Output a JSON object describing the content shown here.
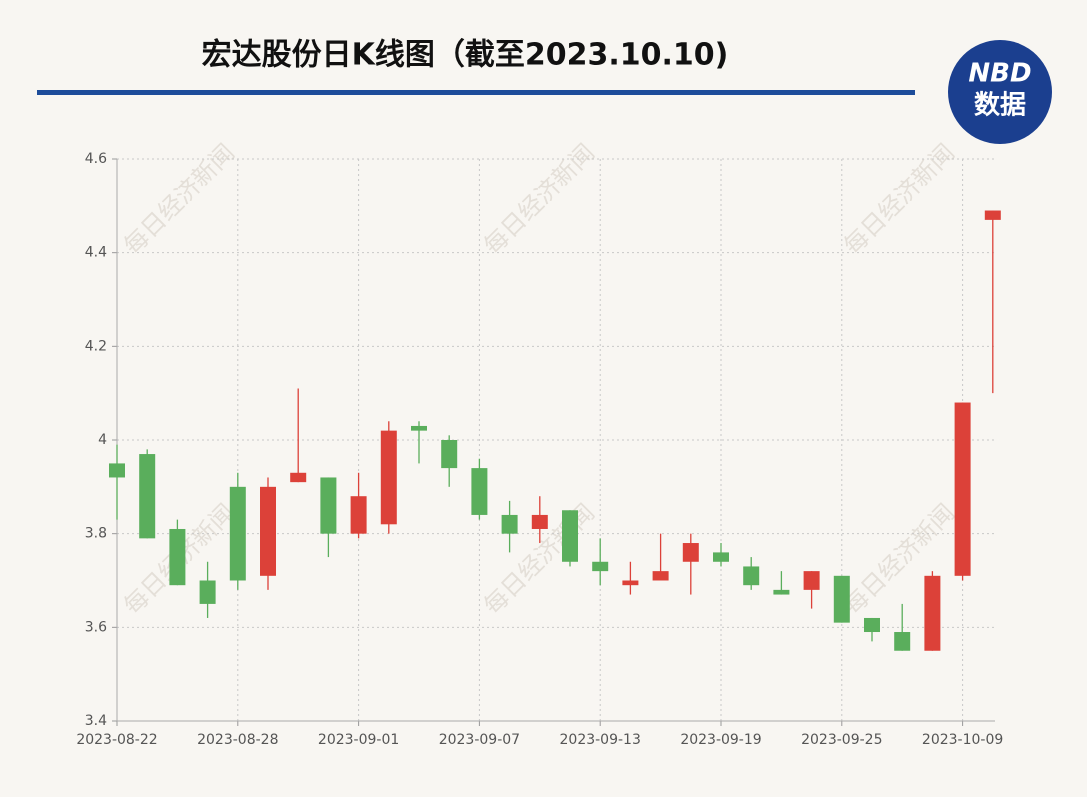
{
  "chart_data": {
    "type": "candlestick",
    "title": "宏达股份日K线图（截至2023.10.10)",
    "logo": {
      "brand": "NBD",
      "label": "数据"
    },
    "watermark": "每日经济新闻",
    "categories": [
      "2023-08-22",
      null,
      null,
      null,
      "2023-08-28",
      null,
      null,
      null,
      "2023-09-01",
      null,
      null,
      null,
      "2023-09-07",
      null,
      null,
      null,
      "2023-09-13",
      null,
      null,
      null,
      "2023-09-19",
      null,
      null,
      null,
      "2023-09-25",
      null,
      null,
      null,
      "2023-10-09",
      null
    ],
    "open": [
      3.95,
      3.97,
      3.81,
      3.7,
      3.9,
      3.71,
      3.91,
      3.92,
      3.8,
      3.82,
      4.03,
      4.0,
      3.94,
      3.84,
      3.81,
      3.85,
      3.74,
      3.69,
      3.7,
      3.74,
      3.76,
      3.73,
      3.68,
      3.68,
      3.71,
      3.62,
      3.59,
      3.55,
      3.71,
      4.47
    ],
    "high": [
      3.99,
      3.98,
      3.83,
      3.74,
      3.93,
      3.92,
      4.11,
      3.92,
      3.93,
      4.04,
      4.04,
      4.01,
      3.96,
      3.87,
      3.88,
      3.85,
      3.79,
      3.74,
      3.8,
      3.8,
      3.78,
      3.75,
      3.72,
      3.72,
      3.71,
      3.62,
      3.65,
      3.72,
      4.08,
      4.49
    ],
    "low": [
      3.83,
      3.79,
      3.69,
      3.62,
      3.68,
      3.68,
      3.91,
      3.75,
      3.79,
      3.8,
      3.95,
      3.9,
      3.83,
      3.76,
      3.78,
      3.73,
      3.69,
      3.67,
      3.7,
      3.67,
      3.73,
      3.68,
      3.67,
      3.64,
      3.61,
      3.57,
      3.55,
      3.55,
      3.7,
      4.1
    ],
    "close": [
      3.92,
      3.79,
      3.69,
      3.65,
      3.7,
      3.9,
      3.93,
      3.8,
      3.88,
      4.02,
      4.02,
      3.94,
      3.84,
      3.8,
      3.84,
      3.74,
      3.72,
      3.7,
      3.72,
      3.78,
      3.74,
      3.69,
      3.67,
      3.72,
      3.61,
      3.59,
      3.55,
      3.71,
      4.08,
      4.49
    ],
    "up_color": "#dc4139",
    "down_color": "#5aae5c",
    "ylim": [
      3.4,
      4.6
    ],
    "yticks": [
      3.4,
      3.6,
      3.8,
      4,
      4.2,
      4.4,
      4.6
    ],
    "grid": true
  }
}
